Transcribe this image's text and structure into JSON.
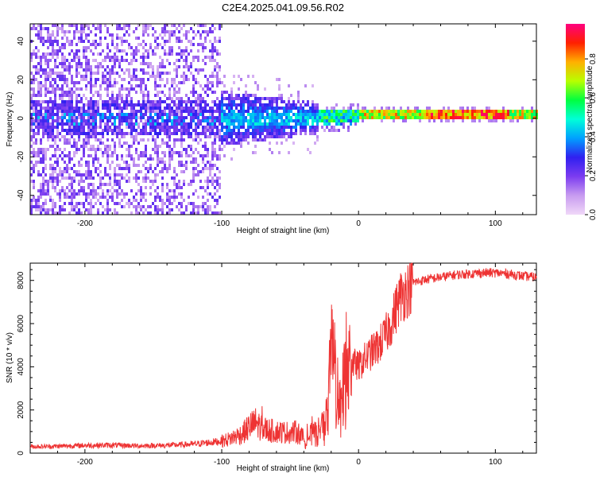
{
  "title": "C2E4.2025.041.09.56.R02",
  "chart_data": [
    {
      "type": "heatmap",
      "title": "C2E4.2025.041.09.56.R02",
      "xlabel": "Height of straight line (km)",
      "ylabel": "Frequency (Hz)",
      "xlim": [
        -240,
        130
      ],
      "ylim": [
        -50,
        49
      ],
      "x_ticks": [
        -200,
        -100,
        0,
        100
      ],
      "y_ticks": [
        -40,
        -20,
        0,
        20,
        40
      ],
      "grid": false,
      "colorbar": {
        "label": "Normalized spectral amplitude",
        "range": [
          0,
          0.98
        ],
        "ticks": [
          0.0,
          0.2,
          0.4,
          0.6,
          0.8
        ],
        "colormap": [
          "#f0d8f8",
          "#c89cf0",
          "#7c3cf0",
          "#3020f0",
          "#00a0ff",
          "#00ffd8",
          "#00ff40",
          "#b8ff00",
          "#ffb000",
          "#ff2000",
          "#ff0080"
        ]
      },
      "description_regions": [
        {
          "x": [
            -240,
            -100
          ],
          "pattern": "broadband scattered noise",
          "level": 0.15
        },
        {
          "x": [
            -100,
            -30
          ],
          "pattern": "energy concentrated near 0 Hz, +/-12 Hz spread",
          "level": 0.3
        },
        {
          "x": [
            -30,
            130
          ],
          "pattern": "narrow tone near 1-2 Hz",
          "level": 0.8
        }
      ]
    },
    {
      "type": "line",
      "xlabel": "Height of straight line (km)",
      "ylabel": "SNR (10 * v/v)",
      "xlim": [
        -240,
        130
      ],
      "ylim": [
        0,
        8800
      ],
      "x_ticks": [
        -200,
        -100,
        0,
        100
      ],
      "y_ticks": [
        0,
        2000,
        4000,
        6000,
        8000
      ],
      "color": "#ee3333",
      "series": [
        {
          "x": [
            -240,
            -220,
            -200,
            -180,
            -160,
            -140,
            -120,
            -105,
            -100,
            -95,
            -90,
            -85,
            -80,
            -75,
            -70,
            -65,
            -60,
            -55,
            -50,
            -45,
            -40,
            -35,
            -30,
            -25,
            -22,
            -20,
            -18,
            -15,
            -12,
            -10,
            -5,
            0,
            5,
            10,
            15,
            20,
            25,
            30,
            40,
            50,
            60,
            70,
            80,
            90,
            100,
            110,
            120,
            130
          ],
          "y": [
            300,
            320,
            360,
            370,
            340,
            360,
            420,
            520,
            560,
            640,
            780,
            900,
            1200,
            1400,
            1150,
            1050,
            1000,
            980,
            950,
            1000,
            700,
            800,
            900,
            1200,
            2000,
            3500,
            4500,
            2200,
            1800,
            3600,
            4200,
            4000,
            4400,
            4700,
            5000,
            5500,
            6200,
            7200,
            7900,
            8050,
            8150,
            8250,
            8300,
            8350,
            8350,
            8300,
            8200,
            8150
          ]
        }
      ]
    }
  ]
}
